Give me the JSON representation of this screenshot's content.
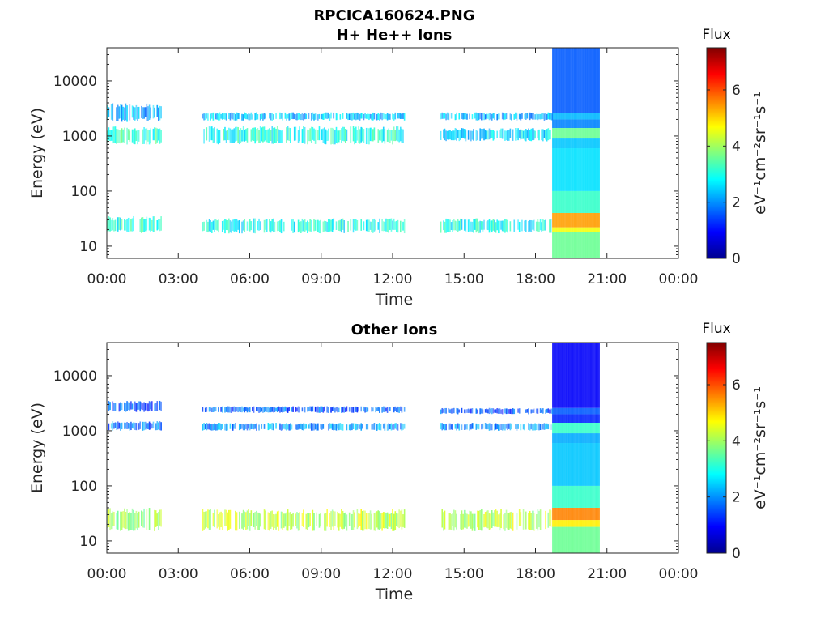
{
  "chart_data": [
    {
      "type": "heatmap",
      "title": "RPCICA160624.PNG",
      "subtitle": "H+ He++ Ions",
      "xlabel": "Time",
      "ylabel": "Energy (eV)",
      "x_ticks": [
        "00:00",
        "03:00",
        "06:00",
        "09:00",
        "12:00",
        "15:00",
        "18:00",
        "21:00",
        "00:00"
      ],
      "x_range_hours": [
        0,
        24
      ],
      "y_scale": "log",
      "y_ticks": [
        10,
        100,
        1000,
        10000
      ],
      "y_tick_labels": [
        "10",
        "100",
        "1000",
        "10000"
      ],
      "ylim": [
        6,
        40000
      ],
      "colorbar": {
        "title": "Flux",
        "label": "eV⁻¹cm⁻²sr⁻¹s⁻¹",
        "range": [
          0,
          7.5
        ],
        "ticks": [
          0,
          2,
          4,
          6
        ],
        "tick_labels": [
          "0",
          "2",
          "4",
          "6"
        ]
      },
      "bands": [
        {
          "t0": 0.0,
          "t1": 2.3,
          "e_low": 17,
          "e_high": 35,
          "flux": 3.0
        },
        {
          "t0": 0.0,
          "t1": 2.3,
          "e_low": 700,
          "e_high": 1500,
          "flux": 3.2
        },
        {
          "t0": 0.0,
          "t1": 2.3,
          "e_low": 1800,
          "e_high": 4000,
          "flux": 2.2
        },
        {
          "t0": 4.0,
          "t1": 12.5,
          "e_low": 17,
          "e_high": 32,
          "flux": 2.9
        },
        {
          "t0": 4.0,
          "t1": 12.5,
          "e_low": 700,
          "e_high": 1500,
          "flux": 3.0
        },
        {
          "t0": 4.0,
          "t1": 12.5,
          "e_low": 1900,
          "e_high": 2700,
          "flux": 2.3
        },
        {
          "t0": 14.0,
          "t1": 18.7,
          "e_low": 17,
          "e_high": 32,
          "flux": 2.9
        },
        {
          "t0": 14.0,
          "t1": 18.7,
          "e_low": 800,
          "e_high": 1400,
          "flux": 2.6
        },
        {
          "t0": 14.0,
          "t1": 18.7,
          "e_low": 1900,
          "e_high": 2700,
          "flux": 2.2
        }
      ],
      "full_coverage": {
        "t0": 18.7,
        "t1": 20.7,
        "layers": [
          {
            "e_low": 6,
            "e_high": 18,
            "flux": 3.6
          },
          {
            "e_low": 18,
            "e_high": 22,
            "flux": 4.6
          },
          {
            "e_low": 22,
            "e_high": 40,
            "flux": 5.4
          },
          {
            "e_low": 40,
            "e_high": 100,
            "flux": 3.2
          },
          {
            "e_low": 100,
            "e_high": 600,
            "flux": 2.6
          },
          {
            "e_low": 600,
            "e_high": 900,
            "flux": 2.4
          },
          {
            "e_low": 900,
            "e_high": 1400,
            "flux": 3.6
          },
          {
            "e_low": 1400,
            "e_high": 2000,
            "flux": 1.9
          },
          {
            "e_low": 2000,
            "e_high": 2600,
            "flux": 2.3
          },
          {
            "e_low": 2600,
            "e_high": 40000,
            "flux": 1.6
          }
        ]
      }
    },
    {
      "type": "heatmap",
      "title": "Other Ions",
      "xlabel": "Time",
      "ylabel": "Energy (eV)",
      "x_ticks": [
        "00:00",
        "03:00",
        "06:00",
        "09:00",
        "12:00",
        "15:00",
        "18:00",
        "21:00",
        "00:00"
      ],
      "x_range_hours": [
        0,
        24
      ],
      "y_scale": "log",
      "y_ticks": [
        10,
        100,
        1000,
        10000
      ],
      "y_tick_labels": [
        "10",
        "100",
        "1000",
        "10000"
      ],
      "ylim": [
        6,
        40000
      ],
      "colorbar": {
        "title": "Flux",
        "label": "eV⁻¹cm⁻²sr⁻¹s⁻¹",
        "range": [
          0,
          7.5
        ],
        "ticks": [
          0,
          2,
          4,
          6
        ],
        "tick_labels": [
          "0",
          "2",
          "4",
          "6"
        ]
      },
      "bands": [
        {
          "t0": 0.0,
          "t1": 2.3,
          "e_low": 15,
          "e_high": 40,
          "flux": 4.0
        },
        {
          "t0": 0.0,
          "t1": 2.3,
          "e_low": 1000,
          "e_high": 1500,
          "flux": 1.8
        },
        {
          "t0": 0.0,
          "t1": 2.3,
          "e_low": 2200,
          "e_high": 3500,
          "flux": 1.5
        },
        {
          "t0": 4.0,
          "t1": 12.5,
          "e_low": 15,
          "e_high": 38,
          "flux": 4.2
        },
        {
          "t0": 4.0,
          "t1": 12.5,
          "e_low": 1000,
          "e_high": 1400,
          "flux": 2.0
        },
        {
          "t0": 4.0,
          "t1": 12.5,
          "e_low": 2100,
          "e_high": 2800,
          "flux": 1.6
        },
        {
          "t0": 14.0,
          "t1": 18.7,
          "e_low": 15,
          "e_high": 38,
          "flux": 4.2
        },
        {
          "t0": 14.0,
          "t1": 18.7,
          "e_low": 1000,
          "e_high": 1400,
          "flux": 2.0
        },
        {
          "t0": 14.0,
          "t1": 18.7,
          "e_low": 2000,
          "e_high": 2600,
          "flux": 1.5
        }
      ],
      "full_coverage": {
        "t0": 18.7,
        "t1": 20.7,
        "layers": [
          {
            "e_low": 6,
            "e_high": 18,
            "flux": 3.6
          },
          {
            "e_low": 18,
            "e_high": 24,
            "flux": 4.8
          },
          {
            "e_low": 24,
            "e_high": 40,
            "flux": 5.6
          },
          {
            "e_low": 40,
            "e_high": 100,
            "flux": 3.2
          },
          {
            "e_low": 100,
            "e_high": 600,
            "flux": 2.4
          },
          {
            "e_low": 600,
            "e_high": 900,
            "flux": 2.2
          },
          {
            "e_low": 900,
            "e_high": 1400,
            "flux": 3.2
          },
          {
            "e_low": 1400,
            "e_high": 2000,
            "flux": 1.2
          },
          {
            "e_low": 2000,
            "e_high": 2600,
            "flux": 1.6
          },
          {
            "e_low": 2600,
            "e_high": 40000,
            "flux": 0.9
          }
        ]
      }
    }
  ]
}
